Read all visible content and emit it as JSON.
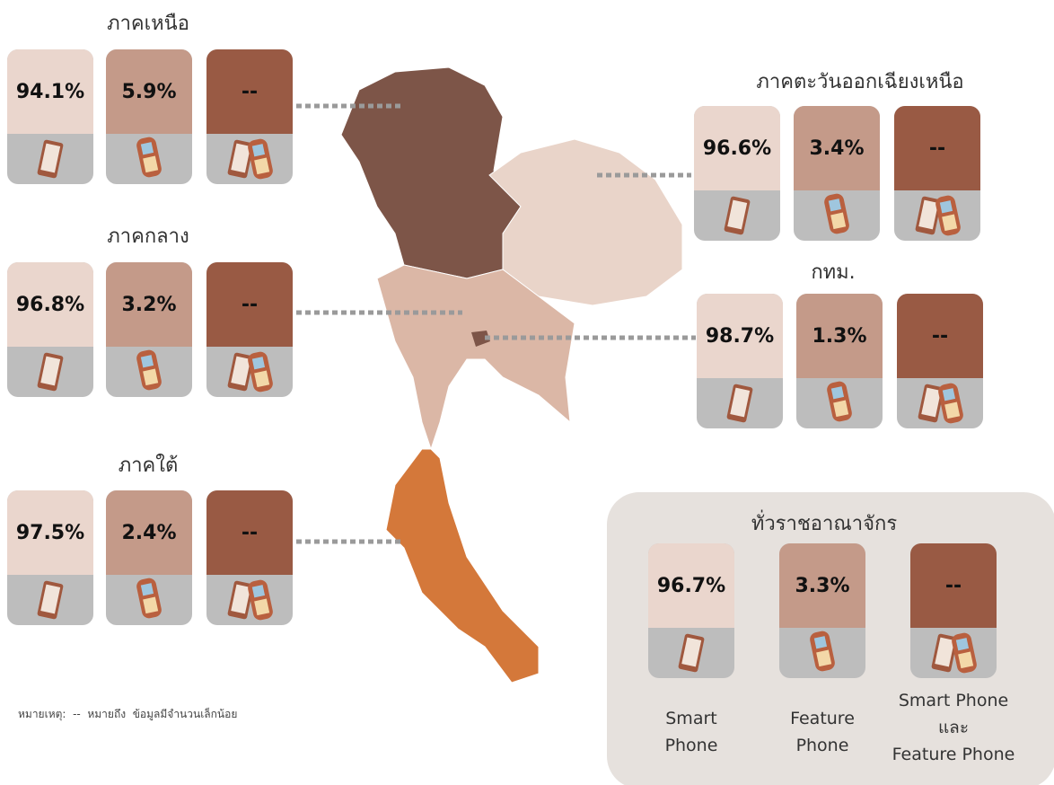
{
  "regions": [
    {
      "name": "ภาคเหนือ",
      "values": [
        "94.1%",
        "5.9%",
        "--"
      ]
    },
    {
      "name": "ภาคกลาง",
      "values": [
        "96.8%",
        "3.2%",
        "--"
      ]
    },
    {
      "name": "ภาคใต้",
      "values": [
        "97.5%",
        "2.4%",
        "--"
      ]
    },
    {
      "name": "ภาคตะวันออกเฉียงเหนือ",
      "values": [
        "96.6%",
        "3.4%",
        "--"
      ]
    },
    {
      "name": "กทม.",
      "values": [
        "98.7%",
        "1.3%",
        "--"
      ]
    }
  ],
  "national": {
    "title": "ทั่วราชอาณาจักร",
    "values": [
      "96.7%",
      "3.3%",
      "--"
    ],
    "labels": [
      [
        "Smart",
        "Phone"
      ],
      [
        "Feature",
        "Phone"
      ],
      [
        "Smart Phone",
        "และ",
        "Feature Phone"
      ]
    ]
  },
  "note": "หมายเหตุ:  --  หมายถึง  ข้อมูลมีจำนวนเล็กน้อย"
}
